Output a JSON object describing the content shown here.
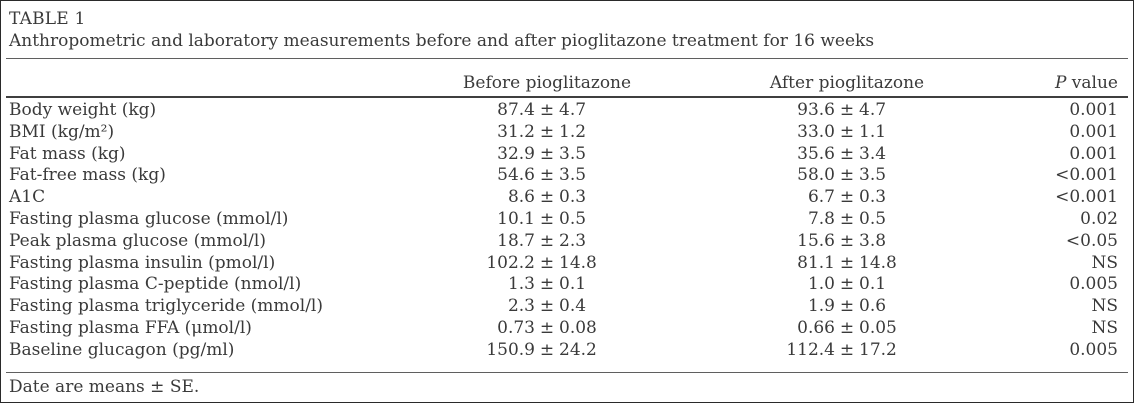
{
  "table": {
    "title": "TABLE 1",
    "subtitle": "Anthropometric and laboratory measurements before and after pioglitazone treatment for 16 weeks",
    "columns": {
      "before": "Before pioglitazone",
      "after": "After pioglitazone",
      "p_symbol": "P",
      "p_rest": " value"
    },
    "rows": [
      {
        "parameter": "Body weight (kg)",
        "before": "87.4 ± 4.7",
        "after": "93.6 ± 4.7",
        "p": "0.001"
      },
      {
        "parameter": "BMI (kg/m²)",
        "before": "31.2 ± 1.2",
        "after": "33.0 ± 1.1",
        "p": "0.001"
      },
      {
        "parameter": "Fat mass (kg)",
        "before": "32.9 ± 3.5",
        "after": "35.6 ± 3.4",
        "p": "0.001"
      },
      {
        "parameter": "Fat-free mass (kg)",
        "before": "54.6 ± 3.5",
        "after": "58.0 ± 3.5",
        "p": "<0.001"
      },
      {
        "parameter": "A1C",
        "before": "8.6 ± 0.3",
        "after": "6.7 ± 0.3",
        "p": "<0.001"
      },
      {
        "parameter": "Fasting plasma glucose (mmol/l)",
        "before": "10.1 ± 0.5",
        "after": "7.8 ± 0.5",
        "p": "0.02"
      },
      {
        "parameter": "Peak plasma glucose (mmol/l)",
        "before": "18.7 ± 2.3",
        "after": "15.6 ± 3.8",
        "p": "<0.05"
      },
      {
        "parameter": "Fasting plasma insulin (pmol/l)",
        "before": "102.2 ± 14.8",
        "after": "81.1 ± 14.8",
        "p": "NS"
      },
      {
        "parameter": "Fasting plasma C-peptide (nmol/l)",
        "before": "1.3 ± 0.1",
        "after": "1.0 ± 0.1",
        "p": "0.005"
      },
      {
        "parameter": "Fasting plasma triglyceride (mmol/l)",
        "before": "2.3 ± 0.4",
        "after": "1.9 ± 0.6",
        "p": "NS"
      },
      {
        "parameter": "Fasting plasma FFA (μmol/l)",
        "before": "0.73 ± 0.08",
        "after": "0.66 ± 0.05",
        "p": "NS"
      },
      {
        "parameter": "Baseline glucagon (pg/ml)",
        "before": "150.9 ± 24.2",
        "after": "112.4 ± 17.2",
        "p": "0.005"
      }
    ],
    "footnote": "Date are means ± SE."
  }
}
